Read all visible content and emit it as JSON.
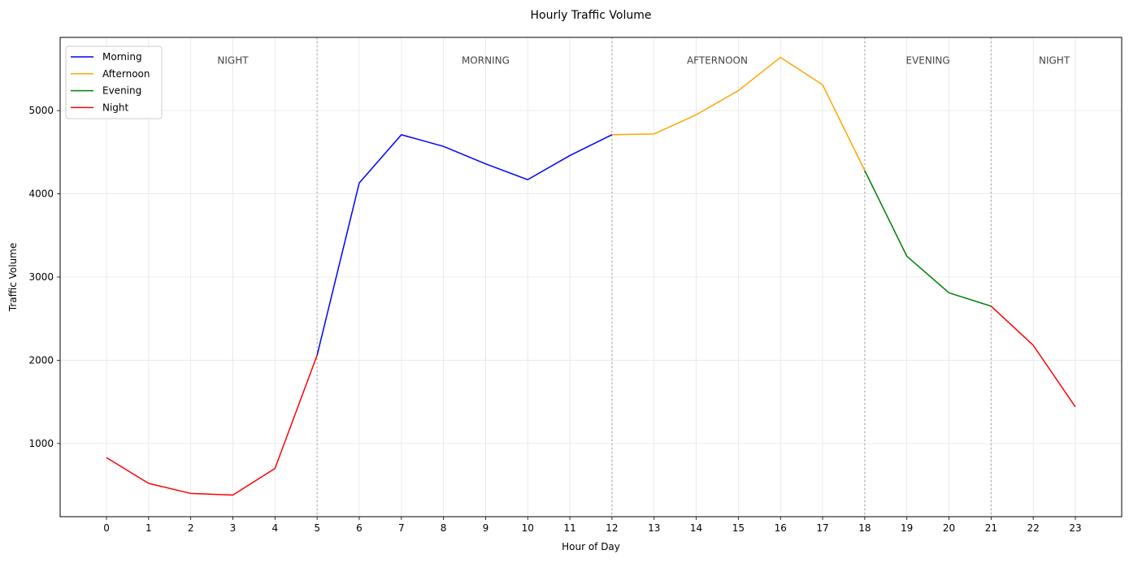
{
  "chart_data": {
    "type": "line",
    "title": "Hourly Traffic Volume",
    "xlabel": "Hour of Day",
    "ylabel": "Traffic Volume",
    "x": [
      0,
      1,
      2,
      3,
      4,
      5,
      6,
      7,
      8,
      9,
      10,
      11,
      12,
      13,
      14,
      15,
      16,
      17,
      18,
      19,
      20,
      21,
      22,
      23
    ],
    "xlim": [
      -1.1,
      24.1
    ],
    "ylim": [
      120,
      5880
    ],
    "yticks": [
      1000,
      2000,
      3000,
      4000,
      5000
    ],
    "grid": true,
    "legend": "top-left",
    "series": [
      {
        "name": "Morning",
        "color": "#0000ff",
        "points": [
          [
            5,
            2060
          ],
          [
            6,
            4130
          ],
          [
            7,
            4710
          ],
          [
            8,
            4570
          ],
          [
            9,
            4360
          ],
          [
            10,
            4170
          ],
          [
            11,
            4460
          ],
          [
            12,
            4710
          ]
        ]
      },
      {
        "name": "Afternoon",
        "color": "#ffa500",
        "points": [
          [
            12,
            4710
          ],
          [
            13,
            4720
          ],
          [
            14,
            4950
          ],
          [
            15,
            5240
          ],
          [
            16,
            5640
          ],
          [
            17,
            5310
          ],
          [
            18,
            4280
          ]
        ]
      },
      {
        "name": "Evening",
        "color": "#008000",
        "points": [
          [
            18,
            4280
          ],
          [
            19,
            3250
          ],
          [
            20,
            2810
          ],
          [
            21,
            2650
          ]
        ]
      },
      {
        "name": "Night",
        "color": "#ff0000",
        "points": [
          [
            0,
            830
          ],
          [
            1,
            520
          ],
          [
            2,
            400
          ],
          [
            3,
            380
          ],
          [
            4,
            700
          ],
          [
            5,
            2060
          ]
        ],
        "points_b": [
          [
            21,
            2650
          ],
          [
            22,
            2180
          ],
          [
            23,
            1440
          ]
        ]
      }
    ],
    "boundaries": [
      5,
      12,
      18,
      21
    ],
    "periods": [
      {
        "label": "NIGHT",
        "x": 3
      },
      {
        "label": "MORNING",
        "x": 9
      },
      {
        "label": "AFTERNOON",
        "x": 14.5
      },
      {
        "label": "EVENING",
        "x": 19.5
      },
      {
        "label": "NIGHT",
        "x": 22.5
      }
    ],
    "period_label_y": 5600
  }
}
